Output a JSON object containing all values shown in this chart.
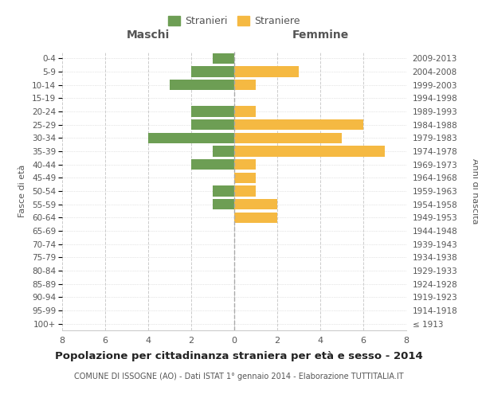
{
  "age_groups": [
    "100+",
    "95-99",
    "90-94",
    "85-89",
    "80-84",
    "75-79",
    "70-74",
    "65-69",
    "60-64",
    "55-59",
    "50-54",
    "45-49",
    "40-44",
    "35-39",
    "30-34",
    "25-29",
    "20-24",
    "15-19",
    "10-14",
    "5-9",
    "0-4"
  ],
  "birth_years": [
    "≤ 1913",
    "1914-1918",
    "1919-1923",
    "1924-1928",
    "1929-1933",
    "1934-1938",
    "1939-1943",
    "1944-1948",
    "1949-1953",
    "1954-1958",
    "1959-1963",
    "1964-1968",
    "1969-1973",
    "1974-1978",
    "1979-1983",
    "1984-1988",
    "1989-1993",
    "1994-1998",
    "1999-2003",
    "2004-2008",
    "2009-2013"
  ],
  "maschi": [
    0,
    0,
    0,
    0,
    0,
    0,
    0,
    0,
    0,
    1,
    1,
    0,
    2,
    1,
    4,
    2,
    2,
    0,
    3,
    2,
    1
  ],
  "femmine": [
    0,
    0,
    0,
    0,
    0,
    0,
    0,
    0,
    2,
    2,
    1,
    1,
    1,
    7,
    5,
    6,
    1,
    0,
    1,
    3,
    0
  ],
  "maschi_color": "#6d9e54",
  "femmine_color": "#f5b942",
  "background_color": "#ffffff",
  "grid_color": "#cccccc",
  "title": "Popolazione per cittadinanza straniera per età e sesso - 2014",
  "subtitle": "COMUNE DI ISSOGNE (AO) - Dati ISTAT 1° gennaio 2014 - Elaborazione TUTTITALIA.IT",
  "xlabel_left": "Maschi",
  "xlabel_right": "Femmine",
  "ylabel_left": "Fasce di età",
  "ylabel_right": "Anni di nascita",
  "legend_stranieri": "Stranieri",
  "legend_straniere": "Straniere",
  "xlim": 8,
  "bar_height": 0.8
}
